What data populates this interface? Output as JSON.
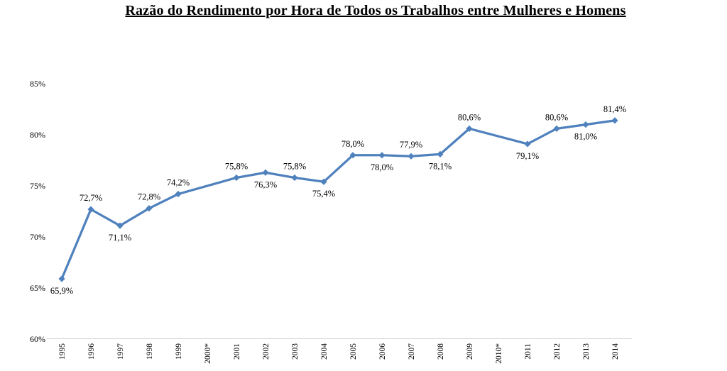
{
  "chart_data": {
    "type": "line",
    "title": "Razão do Rendimento por Hora de Todos os Trabalhos entre Mulheres e Homens",
    "categories": [
      "1995",
      "1996",
      "1997",
      "1998",
      "1999",
      "2000*",
      "2001",
      "2002",
      "2003",
      "2004",
      "2005",
      "2006",
      "2007",
      "2008",
      "2009",
      "2010*",
      "2011",
      "2012",
      "2013",
      "2014"
    ],
    "series": [
      {
        "values": [
          65.9,
          72.7,
          71.1,
          72.8,
          74.2,
          null,
          75.8,
          76.3,
          75.8,
          75.4,
          78.0,
          78.0,
          77.9,
          78.1,
          80.6,
          null,
          79.1,
          80.6,
          81.0,
          81.4
        ]
      }
    ],
    "data_labels": [
      {
        "text": "65,9%",
        "placement": "below"
      },
      {
        "text": "72,7%",
        "placement": "above"
      },
      {
        "text": "71,1%",
        "placement": "below"
      },
      {
        "text": "72,8%",
        "placement": "above"
      },
      {
        "text": "74,2%",
        "placement": "above"
      },
      null,
      {
        "text": "75,8%",
        "placement": "above"
      },
      {
        "text": "76,3%",
        "placement": "below"
      },
      {
        "text": "75,8%",
        "placement": "above"
      },
      {
        "text": "75,4%",
        "placement": "below"
      },
      {
        "text": "78,0%",
        "placement": "above"
      },
      {
        "text": "78,0%",
        "placement": "below"
      },
      {
        "text": "77,9%",
        "placement": "above"
      },
      {
        "text": "78,1%",
        "placement": "below"
      },
      {
        "text": "80,6%",
        "placement": "above"
      },
      null,
      {
        "text": "79,1%",
        "placement": "below"
      },
      {
        "text": "80,6%",
        "placement": "above"
      },
      {
        "text": "81,0%",
        "placement": "below"
      },
      {
        "text": "81,4%",
        "placement": "above"
      }
    ],
    "y_ticks": [
      {
        "label": "85%",
        "value": 85
      },
      {
        "label": "80%",
        "value": 80
      },
      {
        "label": "75%",
        "value": 75
      },
      {
        "label": "70%",
        "value": 70
      },
      {
        "label": "65%",
        "value": 65
      },
      {
        "label": "60%",
        "value": 60
      }
    ],
    "ylim": [
      60,
      85
    ],
    "xlabel": "",
    "ylabel": "",
    "grid": false,
    "legend": "none",
    "marker": "diamond",
    "colors": {
      "line": "#4f81bd",
      "marker": "#4f81bd",
      "axis_line": "#d3d3d3",
      "text": "#000000"
    }
  }
}
